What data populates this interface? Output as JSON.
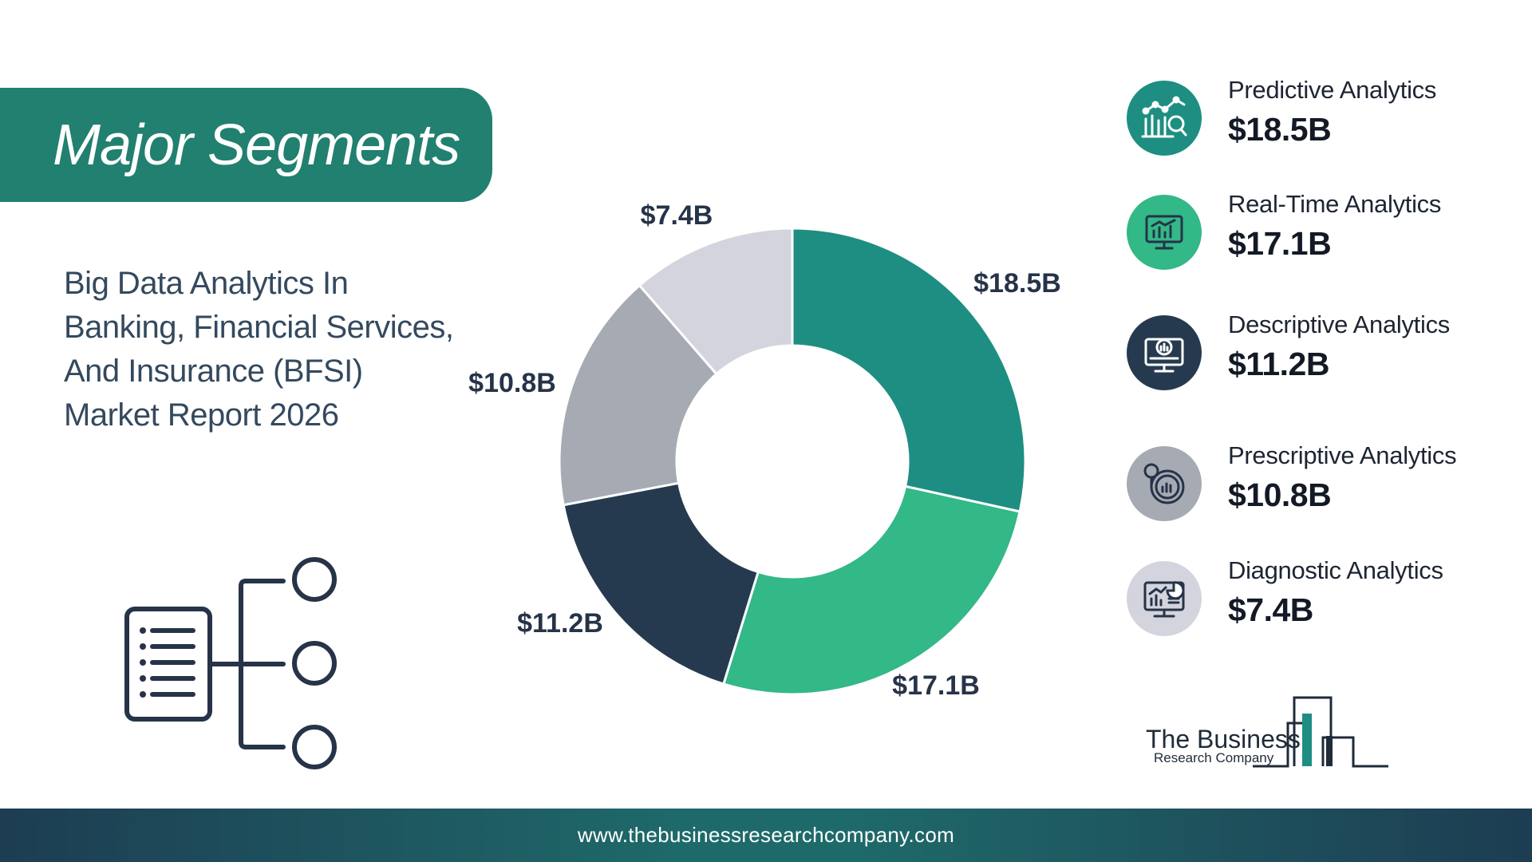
{
  "header": {
    "title": "Major Segments"
  },
  "report_title_lines": [
    "Big Data Analytics In",
    "Banking, Financial Services,",
    "And Insurance (BFSI)",
    "Market Report 2026"
  ],
  "chart_data": {
    "type": "pie",
    "donut": true,
    "categories": [
      "Predictive Analytics",
      "Real-Time Analytics",
      "Descriptive Analytics",
      "Prescriptive Analytics",
      "Diagnostic Analytics"
    ],
    "values": [
      18.5,
      17.1,
      11.2,
      10.8,
      7.4
    ],
    "data_labels": [
      "$18.5B",
      "$17.1B",
      "$11.2B",
      "$10.8B",
      "$7.4B"
    ],
    "colors": [
      "#1e8e82",
      "#33b888",
      "#263a4f",
      "#a6aab3",
      "#d3d4de"
    ],
    "unit": "$B"
  },
  "legend": {
    "items": [
      {
        "label": "Predictive Analytics",
        "value": "$18.5B",
        "icon": "predictive-analytics-icon",
        "color": "#1e8e82"
      },
      {
        "label": "Real-Time Analytics",
        "value": "$17.1B",
        "icon": "real-time-analytics-icon",
        "color": "#33b888"
      },
      {
        "label": "Descriptive Analytics",
        "value": "$11.2B",
        "icon": "descriptive-analytics-icon",
        "color": "#263a4f"
      },
      {
        "label": "Prescriptive Analytics",
        "value": "$10.8B",
        "icon": "prescriptive-analytics-icon",
        "color": "#a6aab3"
      },
      {
        "label": "Diagnostic Analytics",
        "value": "$7.4B",
        "icon": "diagnostic-analytics-icon",
        "color": "#d3d4de"
      }
    ]
  },
  "brand": {
    "name": "The Business",
    "subtitle": "Research Company"
  },
  "footer": {
    "url": "www.thebusinessresearchcompany.com"
  }
}
